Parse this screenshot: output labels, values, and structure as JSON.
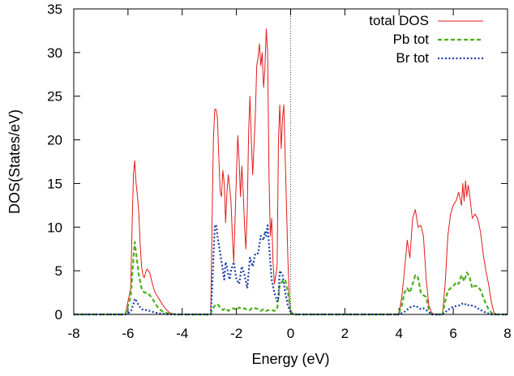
{
  "chart_data": {
    "type": "line",
    "title": "",
    "xlabel": "Energy (eV)",
    "ylabel": "DOS(States/eV)",
    "xlim": [
      -8,
      8
    ],
    "ylim": [
      0,
      35
    ],
    "xticks": [
      -8,
      -6,
      -4,
      -2,
      0,
      2,
      4,
      6,
      8
    ],
    "yticks": [
      0,
      5,
      10,
      15,
      20,
      25,
      30,
      35
    ],
    "xtick_labels": [
      "-8",
      "-6",
      "-4",
      "-2",
      "0",
      "2",
      "4",
      "6",
      "8"
    ],
    "ytick_labels": [
      "0",
      "5",
      "10",
      "15",
      "20",
      "25",
      "30",
      "35"
    ],
    "fermi_level": 0,
    "legend_position": "top-right",
    "series": [
      {
        "name": "total DOS",
        "color": "#e41a1c",
        "dash": "solid",
        "x": [
          -8,
          -6.1,
          -5.9,
          -5.85,
          -5.8,
          -5.75,
          -5.7,
          -5.65,
          -5.6,
          -5.55,
          -5.5,
          -5.45,
          -5.4,
          -5.35,
          -5.3,
          -5.2,
          -5.1,
          -5.0,
          -4.9,
          -4.8,
          -4.7,
          -4.6,
          -4.5,
          -4.4,
          -4.3,
          -4.2,
          -3.5,
          -2.95,
          -2.9,
          -2.85,
          -2.8,
          -2.75,
          -2.7,
          -2.65,
          -2.6,
          -2.55,
          -2.5,
          -2.45,
          -2.4,
          -2.35,
          -2.3,
          -2.25,
          -2.2,
          -2.15,
          -2.1,
          -2.05,
          -2.0,
          -1.95,
          -1.9,
          -1.85,
          -1.8,
          -1.75,
          -1.7,
          -1.65,
          -1.6,
          -1.55,
          -1.5,
          -1.45,
          -1.4,
          -1.35,
          -1.3,
          -1.25,
          -1.2,
          -1.15,
          -1.1,
          -1.05,
          -1.0,
          -0.95,
          -0.9,
          -0.85,
          -0.8,
          -0.75,
          -0.7,
          -0.65,
          -0.6,
          -0.5,
          -0.45,
          -0.4,
          -0.35,
          -0.3,
          -0.25,
          -0.2,
          -0.15,
          -0.1,
          -0.05,
          0.0,
          0.1,
          1.0,
          3.0,
          3.95,
          4.0,
          4.1,
          4.2,
          4.3,
          4.4,
          4.5,
          4.6,
          4.7,
          4.8,
          4.9,
          5.0,
          5.1,
          5.2,
          5.3,
          5.6,
          5.7,
          5.8,
          5.9,
          6.0,
          6.1,
          6.2,
          6.3,
          6.35,
          6.4,
          6.45,
          6.5,
          6.55,
          6.6,
          6.7,
          6.8,
          6.9,
          7.0,
          7.1,
          7.2,
          7.3,
          7.4,
          7.5,
          7.6,
          8.0
        ],
        "values": [
          0,
          0,
          3.0,
          10.0,
          16.0,
          17.6,
          15.0,
          13.5,
          11.5,
          8.0,
          5.5,
          4.5,
          4.2,
          4.8,
          5.2,
          4.8,
          3.5,
          2.5,
          2.0,
          1.5,
          1.0,
          0.6,
          0.3,
          0.1,
          0,
          0,
          0,
          0,
          10.0,
          20.0,
          23.5,
          23.5,
          22.5,
          18.0,
          14.0,
          13.5,
          16.5,
          15.0,
          10.5,
          14.0,
          16.0,
          14.5,
          13.0,
          9.0,
          6.0,
          11.0,
          16.0,
          20.5,
          17.5,
          13.5,
          17.0,
          14.0,
          10.0,
          7.5,
          12.0,
          21.0,
          25.0,
          20.0,
          16.0,
          19.5,
          23.0,
          28.5,
          29.5,
          31.0,
          28.5,
          30.0,
          26.0,
          28.0,
          32.7,
          30.0,
          16.0,
          9.0,
          11.0,
          6.0,
          3.5,
          5.5,
          20.0,
          24.0,
          19.0,
          22.5,
          24.0,
          18.0,
          12.0,
          6.0,
          2.0,
          0.5,
          0,
          0,
          0,
          0,
          0.2,
          2.0,
          5.0,
          8.5,
          6.5,
          11.0,
          12.0,
          10.0,
          10.2,
          9.0,
          4.0,
          1.0,
          0.2,
          0,
          0,
          3.5,
          9.0,
          11.5,
          12.5,
          13.0,
          14.0,
          12.5,
          15.0,
          13.0,
          15.3,
          13.5,
          14.8,
          13.8,
          11.0,
          11.5,
          11.0,
          9.5,
          7.0,
          5.0,
          3.5,
          1.5,
          0.2,
          0,
          0
        ]
      },
      {
        "name": "Pb tot",
        "color": "#4daf1a",
        "dash": "dashed",
        "x": [
          -8,
          -6.1,
          -5.9,
          -5.8,
          -5.75,
          -5.7,
          -5.6,
          -5.5,
          -5.4,
          -5.3,
          -5.2,
          -5.1,
          -5.0,
          -4.9,
          -4.8,
          -4.7,
          -4.5,
          -4.2,
          -3.5,
          -2.95,
          -2.9,
          -2.8,
          -2.7,
          -2.6,
          -2.5,
          -2.4,
          -2.3,
          -2.2,
          -2.1,
          -2.0,
          -1.9,
          -1.8,
          -1.7,
          -1.6,
          -1.5,
          -1.4,
          -1.3,
          -1.2,
          -1.1,
          -1.0,
          -0.9,
          -0.8,
          -0.7,
          -0.6,
          -0.5,
          -0.45,
          -0.4,
          -0.3,
          -0.2,
          -0.1,
          0.0,
          0.1,
          3.0,
          3.95,
          4.0,
          4.1,
          4.2,
          4.3,
          4.4,
          4.5,
          4.6,
          4.7,
          4.8,
          4.9,
          5.0,
          5.1,
          5.2,
          5.3,
          5.6,
          5.7,
          5.8,
          5.9,
          6.0,
          6.1,
          6.2,
          6.3,
          6.4,
          6.5,
          6.6,
          6.7,
          6.8,
          6.9,
          7.0,
          7.1,
          7.2,
          7.3,
          7.4,
          7.5,
          8.0
        ],
        "values": [
          0,
          0,
          2.0,
          6.5,
          8.3,
          7.0,
          4.5,
          3.0,
          2.5,
          2.5,
          2.2,
          1.8,
          1.3,
          0.8,
          0.5,
          0.3,
          0.1,
          0,
          0,
          0,
          0.5,
          1.0,
          1.2,
          0.8,
          0.5,
          0.7,
          0.4,
          0.6,
          0.7,
          0.5,
          0.8,
          0.6,
          0.7,
          0.5,
          0.5,
          0.8,
          0.7,
          0.6,
          0.4,
          0.6,
          0.4,
          0.5,
          0.5,
          0.4,
          0.6,
          2.0,
          3.5,
          3.8,
          4.0,
          2.5,
          0.3,
          0,
          0,
          0,
          0.2,
          1.0,
          2.5,
          3.0,
          2.5,
          3.5,
          4.5,
          4.2,
          2.5,
          2.2,
          2.0,
          0.5,
          0,
          0,
          0,
          1.5,
          2.7,
          3.0,
          3.2,
          3.7,
          3.5,
          4.5,
          3.8,
          4.8,
          4.3,
          3.0,
          3.3,
          3.2,
          2.8,
          2.0,
          1.2,
          0.6,
          0.2,
          0,
          0
        ]
      },
      {
        "name": "Br tot",
        "color": "#1a3fa6",
        "dash": "dotted",
        "x": [
          -8,
          -6.1,
          -5.9,
          -5.8,
          -5.75,
          -5.7,
          -5.6,
          -5.5,
          -5.4,
          -5.3,
          -5.2,
          -5.1,
          -5.0,
          -4.8,
          -4.5,
          -3.5,
          -2.95,
          -2.9,
          -2.85,
          -2.8,
          -2.75,
          -2.7,
          -2.6,
          -2.5,
          -2.45,
          -2.4,
          -2.35,
          -2.3,
          -2.25,
          -2.2,
          -2.1,
          -2.0,
          -1.9,
          -1.8,
          -1.7,
          -1.6,
          -1.5,
          -1.4,
          -1.3,
          -1.2,
          -1.1,
          -1.0,
          -0.95,
          -0.9,
          -0.85,
          -0.8,
          -0.7,
          -0.6,
          -0.5,
          -0.45,
          -0.4,
          -0.3,
          -0.2,
          -0.1,
          0.0,
          0.1,
          3.0,
          4.0,
          4.2,
          4.4,
          4.5,
          4.6,
          4.7,
          4.8,
          4.9,
          5.0,
          5.2,
          5.6,
          5.8,
          6.0,
          6.2,
          6.3,
          6.4,
          6.5,
          6.6,
          6.8,
          7.0,
          7.2,
          7.4,
          7.6,
          8.0
        ],
        "values": [
          0,
          0,
          0.3,
          1.2,
          1.8,
          1.6,
          1.0,
          0.6,
          0.5,
          0.5,
          0.4,
          0.3,
          0.2,
          0.1,
          0,
          0,
          0,
          2.5,
          6.5,
          10.0,
          10.3,
          9.0,
          7.0,
          5.0,
          4.0,
          6.0,
          5.5,
          4.5,
          4.0,
          5.0,
          6.0,
          4.0,
          3.5,
          5.5,
          4.5,
          3.0,
          6.5,
          5.5,
          7.0,
          7.0,
          9.0,
          8.5,
          9.5,
          9.0,
          10.2,
          8.0,
          4.0,
          2.5,
          1.5,
          2.0,
          5.0,
          4.5,
          2.5,
          1.0,
          0.2,
          0,
          0,
          0,
          0.3,
          0.8,
          0.9,
          1.0,
          0.8,
          0.6,
          0.7,
          0.5,
          0,
          0,
          0.5,
          0.9,
          1.0,
          1.2,
          1.3,
          1.0,
          1.1,
          0.9,
          0.5,
          0.2,
          0,
          0,
          0
        ]
      }
    ]
  }
}
